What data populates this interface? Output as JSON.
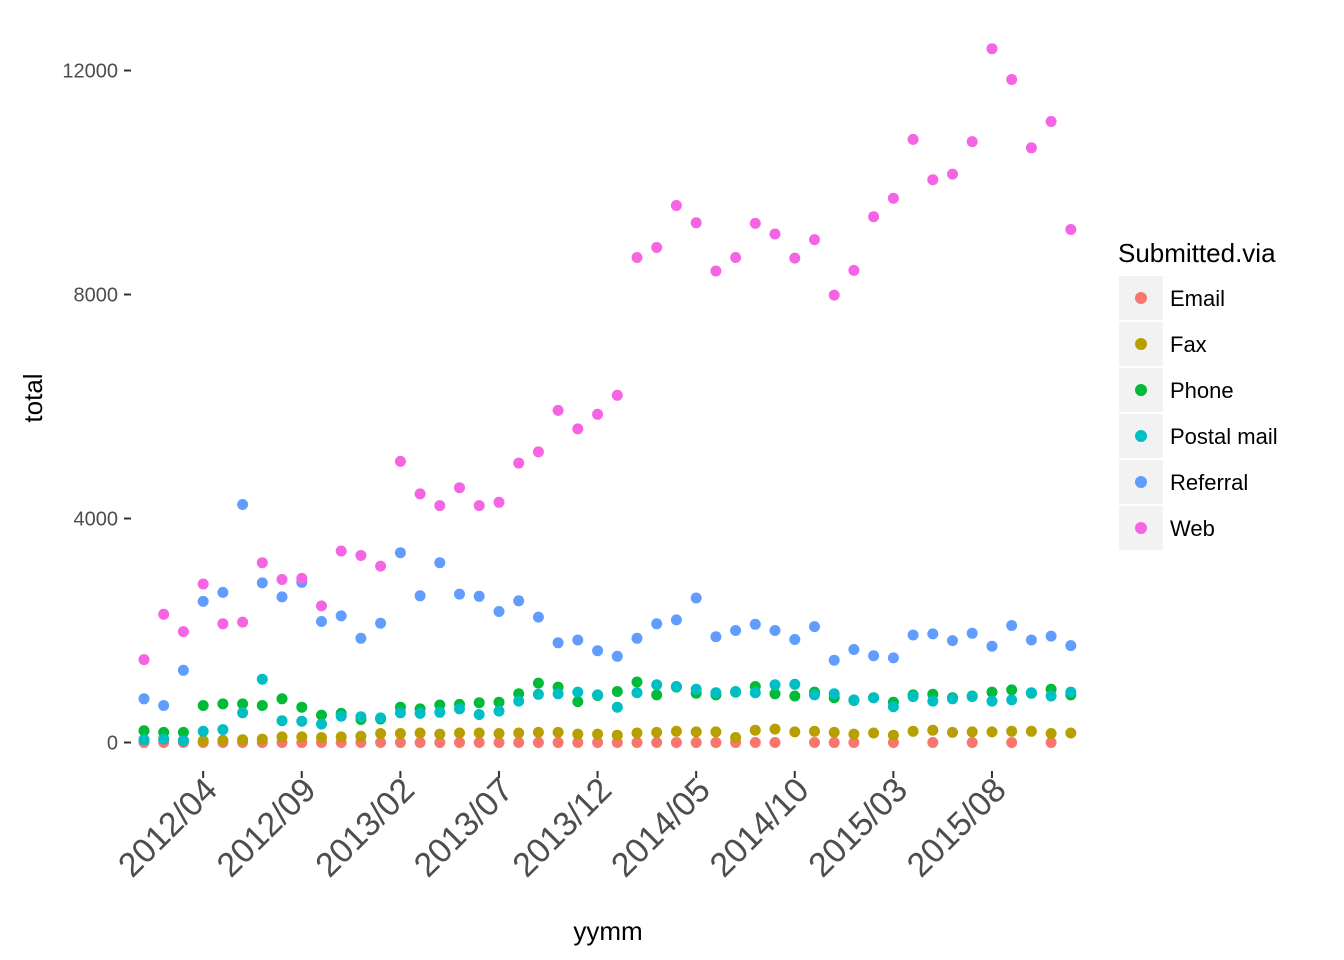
{
  "chart_data": {
    "type": "scatter",
    "xlabel": "yymm",
    "ylabel": "total",
    "ylim": [
      -700,
      12500
    ],
    "y_ticks": [
      0,
      4000,
      8000,
      12000
    ],
    "x_tick_labels": [
      "2012/04",
      "2012/09",
      "2013/02",
      "2013/07",
      "2013/12",
      "2014/05",
      "2014/10",
      "2015/03",
      "2015/08"
    ],
    "x_tick_months": [
      3,
      8,
      13,
      18,
      23,
      28,
      33,
      38,
      43
    ],
    "x_months": [
      "2012/01",
      "2012/02",
      "2012/03",
      "2012/04",
      "2012/05",
      "2012/06",
      "2012/07",
      "2012/08",
      "2012/09",
      "2012/10",
      "2012/11",
      "2012/12",
      "2013/01",
      "2013/02",
      "2013/03",
      "2013/04",
      "2013/05",
      "2013/06",
      "2013/07",
      "2013/08",
      "2013/09",
      "2013/10",
      "2013/11",
      "2013/12",
      "2014/01",
      "2014/02",
      "2014/03",
      "2014/04",
      "2014/05",
      "2014/06",
      "2014/07",
      "2014/08",
      "2014/09",
      "2014/10",
      "2014/11",
      "2014/12",
      "2015/01",
      "2015/02",
      "2015/03",
      "2015/04",
      "2015/05",
      "2015/06",
      "2015/07",
      "2015/08",
      "2015/09",
      "2015/10",
      "2015/11",
      "2015/12"
    ],
    "grid": false,
    "legend": {
      "title": "Submitted.via",
      "placement": "right"
    },
    "series": [
      {
        "name": "Email",
        "color": "#F8766D",
        "values": [
          0,
          0,
          0,
          0,
          0,
          0,
          0,
          0,
          0,
          0,
          0,
          0,
          0,
          0,
          0,
          0,
          0,
          0,
          0,
          0,
          0,
          0,
          0,
          0,
          0,
          0,
          0,
          0,
          0,
          0,
          0,
          0,
          0,
          null,
          0,
          0,
          0,
          null,
          0,
          null,
          0,
          null,
          0,
          null,
          0,
          null,
          0,
          null
        ]
      },
      {
        "name": "Fax",
        "color": "#B79F00",
        "values": [
          50,
          60,
          40,
          30,
          40,
          50,
          60,
          100,
          100,
          90,
          100,
          110,
          160,
          160,
          170,
          150,
          170,
          170,
          160,
          170,
          180,
          180,
          150,
          150,
          130,
          170,
          180,
          200,
          190,
          190,
          90,
          220,
          240,
          190,
          200,
          180,
          150,
          170,
          130,
          200,
          220,
          180,
          190,
          190,
          200,
          200,
          160,
          170
        ]
      },
      {
        "name": "Phone",
        "color": "#00BA38",
        "values": [
          210,
          180,
          180,
          660,
          690,
          690,
          660,
          780,
          630,
          490,
          520,
          410,
          420,
          630,
          600,
          670,
          680,
          710,
          720,
          870,
          1060,
          990,
          730,
          840,
          910,
          1080,
          850,
          990,
          880,
          850,
          900,
          1000,
          870,
          830,
          900,
          800,
          750,
          800,
          720,
          850,
          860,
          800,
          830,
          900,
          940,
          880,
          950,
          850
        ]
      },
      {
        "name": "Postal mail",
        "color": "#00BFC4",
        "values": [
          50,
          60,
          30,
          200,
          230,
          530,
          1130,
          390,
          380,
          330,
          470,
          460,
          440,
          530,
          520,
          540,
          600,
          500,
          560,
          740,
          860,
          870,
          900,
          850,
          630,
          890,
          1030,
          1000,
          950,
          890,
          910,
          890,
          1030,
          1040,
          850,
          870,
          760,
          800,
          640,
          820,
          740,
          780,
          820,
          740,
          760,
          890,
          830,
          900
        ]
      },
      {
        "name": "Referral",
        "color": "#619CFF",
        "values": [
          780,
          660,
          1290,
          2520,
          2680,
          4250,
          2850,
          2600,
          2860,
          2160,
          2260,
          1860,
          2130,
          3390,
          2620,
          3210,
          2650,
          2610,
          2340,
          2530,
          2240,
          1780,
          1830,
          1640,
          1540,
          1860,
          2120,
          2190,
          2580,
          1890,
          2000,
          2110,
          2000,
          1840,
          2070,
          1470,
          1660,
          1550,
          1510,
          1920,
          1940,
          1820,
          1950,
          1720,
          2090,
          1830,
          1900,
          1730
        ]
      },
      {
        "name": "Web",
        "color": "#F564E3",
        "values": [
          1480,
          2290,
          1980,
          2830,
          2120,
          2150,
          3210,
          2910,
          2930,
          2440,
          3420,
          3340,
          3150,
          5020,
          4440,
          4230,
          4550,
          4230,
          4290,
          4990,
          5190,
          5930,
          5600,
          5860,
          6200,
          8660,
          8840,
          9590,
          9280,
          8420,
          8660,
          9270,
          9080,
          8650,
          8980,
          7990,
          8430,
          9390,
          9720,
          10770,
          10050,
          10150,
          10730,
          12390,
          11840,
          10620,
          11090,
          9160
        ]
      }
    ]
  }
}
